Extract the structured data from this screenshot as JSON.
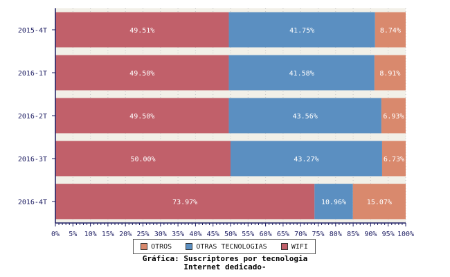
{
  "chart_data": {
    "type": "bar",
    "orientation": "horizontal",
    "stacked": true,
    "categories": [
      "2015-4T",
      "2016-1T",
      "2016-2T",
      "2016-3T",
      "2016-4T"
    ],
    "series": [
      {
        "name": "WIFI",
        "color": "#c1606a",
        "values": [
          49.51,
          49.5,
          49.5,
          50.0,
          73.97
        ],
        "labels": [
          "49.51%",
          "49.50%",
          "49.50%",
          "50.00%",
          "73.97%"
        ]
      },
      {
        "name": "OTRAS TECNOLOGIAS",
        "color": "#5b8fc1",
        "values": [
          41.75,
          41.58,
          43.56,
          43.27,
          10.96
        ],
        "labels": [
          "41.75%",
          "41.58%",
          "43.56%",
          "43.27%",
          "10.96%"
        ]
      },
      {
        "name": "OTROS",
        "color": "#d9896d",
        "values": [
          8.74,
          8.91,
          6.93,
          6.73,
          15.07
        ],
        "labels": [
          "8.74%",
          "8.91%",
          "6.93%",
          "6.73%",
          "15.07%"
        ]
      }
    ],
    "xlim": [
      0,
      100
    ],
    "xticks": [
      "0%",
      "5%",
      "10%",
      "15%",
      "20%",
      "25%",
      "30%",
      "35%",
      "40%",
      "45%",
      "50%",
      "55%",
      "60%",
      "65%",
      "70%",
      "75%",
      "80%",
      "85%",
      "90%",
      "95%",
      "100%"
    ],
    "grid": true,
    "legend_position": "bottom",
    "legend_order": [
      "OTROS",
      "OTRAS TECNOLOGIAS",
      "WIFI"
    ]
  },
  "caption": {
    "line1": "Gráfica: Suscriptores por tecnologia",
    "line2": "Internet dedicado-"
  },
  "colors": {
    "axis": "#1a1a60",
    "plot_bg": "#f2f0e8"
  }
}
